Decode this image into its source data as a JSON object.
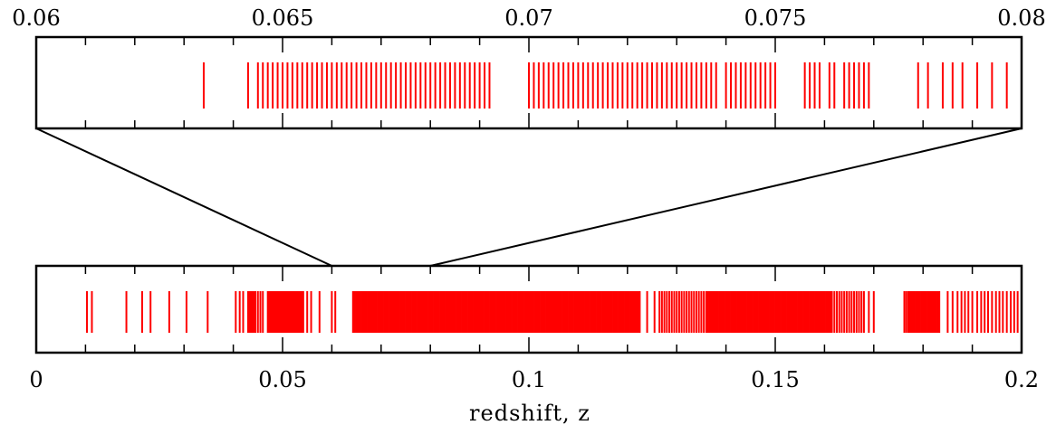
{
  "chart_data": [
    {
      "type": "rug",
      "name": "zoom-panel",
      "xlim": [
        0.06,
        0.08
      ],
      "tick_labels": [
        "0.06",
        "0.065",
        "0.07",
        "0.075",
        "0.08"
      ],
      "tick_values": [
        0.06,
        0.065,
        0.07,
        0.075,
        0.08
      ],
      "minor_step": 0.001,
      "xlabel": "",
      "color": "#ff0000",
      "z": [
        0.0667,
        0.0688,
        0.069,
        0.0692,
        0.0694,
        0.0695,
        0.0697,
        0.0698,
        0.07,
        0.0701,
        0.0702,
        0.0703,
        0.0705,
        0.0706,
        0.0707,
        0.0708,
        0.0709,
        0.0711,
        0.0712,
        0.0713,
        0.0714,
        0.0716,
        0.0718,
        0.0719,
        0.072,
        0.0722,
        0.0724,
        0.0725,
        0.0726,
        0.0727,
        0.0729,
        0.073,
        0.0731,
        0.0732,
        0.0734,
        0.0736,
        0.0738,
        0.0739,
        0.0741,
        0.0743,
        0.0744,
        0.0745,
        0.0747,
        0.0748,
        0.075,
        0.0752,
        0.0753,
        0.0755,
        0.0757,
        0.0758,
        0.076,
        0.0763,
        0.0765,
        0.0767,
        0.077,
        0.0775,
        0.0776,
        0.0778,
        0.078,
        0.0781,
        0.0783,
        0.0785,
        0.0787,
        0.0789,
        0.079,
        0.0791,
        0.0793,
        0.0795,
        0.0797,
        0.0799,
        0.0801,
        0.0803,
        0.0806,
        0.0808,
        0.081,
        0.0812,
        0.0815,
        0.0817,
        0.0819,
        0.0821,
        0.0823,
        0.0826,
        0.0829,
        0.0832,
        0.0836,
        0.084,
        0.0844,
        0.0848,
        0.0852,
        0.0856,
        0.086,
        0.0863,
        0.0867,
        0.0871,
        0.0875,
        0.0879,
        0.0883,
        0.0887,
        0.0891,
        0.0895,
        0.0899,
        0.0903,
        0.0907,
        0.0911,
        0.0915,
        0.0919,
        0.0923,
        0.0927,
        0.0931,
        0.0935,
        0.0939,
        0.0943,
        0.0947,
        0.0951,
        0.0955,
        0.0959,
        0.0963,
        0.0967,
        0.0971,
        0.0975,
        0.0979,
        0.0983,
        0.0987,
        0.0991,
        0.0995,
        0.0999,
        0.1003,
        0.1007,
        0.1011,
        0.1015,
        0.1019,
        0.1023,
        0.1027,
        0.1031,
        0.1035,
        0.1039,
        0.1043,
        0.1047,
        0.1051,
        0.1055,
        0.1059,
        0.1063,
        0.1067,
        0.1071,
        0.1075,
        0.1079,
        0.1083,
        0.1087,
        0.1091,
        0.1095,
        0.1099,
        0.1103,
        0.1107,
        0.1111,
        0.1115,
        0.1119,
        0.1123,
        0.1127,
        0.1131,
        0.1135,
        0.1139,
        0.1143,
        0.1147,
        0.1151,
        0.1155,
        0.1159,
        0.1163,
        0.1167,
        0.1171,
        0.1175,
        0.1179,
        0.1183,
        0.1187,
        0.1191,
        0.1195,
        0.1199,
        0.1203,
        0.1207,
        0.1211,
        0.1215,
        0.1219,
        0.1223,
        0.1227,
        0.1231,
        0.1235,
        0.1239,
        0.1243,
        0.1247,
        0.1251,
        0.1255,
        0.1259,
        0.1263,
        0.1267,
        0.1271,
        0.1275,
        0.1279,
        0.1283,
        0.1287,
        0.1291,
        0.1295,
        0.1299,
        0.1303,
        0.1307,
        0.1311,
        0.1315,
        0.1319,
        0.1323,
        0.1327,
        0.1331,
        0.1335,
        0.1339,
        0.1343,
        0.1347,
        0.1351,
        0.1355,
        0.1359,
        0.1363,
        0.1367,
        0.1371,
        0.1375,
        0.1379,
        0.1383,
        0.1387,
        0.1391,
        0.1395,
        0.1403,
        0.1406,
        0.1409,
        0.1412,
        0.1415,
        0.1418,
        0.1421,
        0.1424,
        0.1427,
        0.143,
        0.1433,
        0.1436,
        0.1439,
        0.1442,
        0.1445,
        0.1448,
        0.1451,
        0.1454,
        0.1457,
        0.146,
        0.1463,
        0.1466,
        0.1469,
        0.1472,
        0.1475,
        0.1478,
        0.1481,
        0.1484,
        0.1487,
        0.149,
        0.1493,
        0.1496,
        0.1499
      ],
      "z_zoom": [
        0.0634,
        0.0643,
        0.0645,
        0.0646,
        0.0647,
        0.0648,
        0.0649,
        0.065,
        0.0651,
        0.0652,
        0.0653,
        0.0654,
        0.0655,
        0.0656,
        0.0657,
        0.0658,
        0.0659,
        0.066,
        0.0661,
        0.0662,
        0.0663,
        0.0664,
        0.0665,
        0.0666,
        0.0667,
        0.0668,
        0.0669,
        0.067,
        0.0671,
        0.0672,
        0.0673,
        0.0674,
        0.0675,
        0.0676,
        0.0677,
        0.0678,
        0.0679,
        0.068,
        0.0681,
        0.0682,
        0.0683,
        0.0684,
        0.0685,
        0.0686,
        0.0687,
        0.0688,
        0.0689,
        0.069,
        0.0691,
        0.0692,
        0.07,
        0.0701,
        0.0702,
        0.0703,
        0.0704,
        0.0705,
        0.0706,
        0.0707,
        0.0708,
        0.0709,
        0.071,
        0.0711,
        0.0712,
        0.0713,
        0.0714,
        0.0715,
        0.0716,
        0.0717,
        0.0718,
        0.0719,
        0.072,
        0.0721,
        0.0722,
        0.0723,
        0.0724,
        0.0725,
        0.0726,
        0.0727,
        0.0728,
        0.0729,
        0.073,
        0.0731,
        0.0732,
        0.0733,
        0.0734,
        0.0735,
        0.0736,
        0.0737,
        0.0738,
        0.074,
        0.0741,
        0.0742,
        0.0743,
        0.0744,
        0.0745,
        0.0746,
        0.0747,
        0.0748,
        0.0749,
        0.075,
        0.0756,
        0.0757,
        0.0758,
        0.0759,
        0.0761,
        0.0762,
        0.0764,
        0.0765,
        0.0766,
        0.0767,
        0.0768,
        0.0769,
        0.0779,
        0.0781,
        0.0784,
        0.0786,
        0.0788,
        0.0791,
        0.0794,
        0.0797
      ]
    },
    {
      "type": "rug",
      "name": "full-panel",
      "xlim": [
        0.0,
        0.2
      ],
      "tick_labels": [
        "0",
        "0.05",
        "0.1",
        "0.15",
        "0.2"
      ],
      "tick_values": [
        0.0,
        0.05,
        0.1,
        0.15,
        0.2
      ],
      "minor_step": 0.01,
      "xlabel": "redshift, z",
      "color": "#ff0000",
      "zoom_range": [
        0.06,
        0.08
      ],
      "z": [
        0.0103,
        0.0113,
        0.0183,
        0.0215,
        0.0232,
        0.027,
        0.0305,
        0.0348,
        0.0405,
        0.0413,
        0.042,
        0.043,
        0.0433,
        0.0436,
        0.0439,
        0.0442,
        0.0445,
        0.045,
        0.0455,
        0.046,
        0.047,
        0.0472,
        0.0474,
        0.0476,
        0.0478,
        0.048,
        0.0482,
        0.0484,
        0.0486,
        0.0488,
        0.049,
        0.0492,
        0.0494,
        0.0496,
        0.0498,
        0.05,
        0.0502,
        0.0504,
        0.0506,
        0.0508,
        0.051,
        0.0512,
        0.0514,
        0.0516,
        0.0518,
        0.052,
        0.0522,
        0.0524,
        0.0526,
        0.0528,
        0.053,
        0.0532,
        0.0534,
        0.0536,
        0.0538,
        0.054,
        0.0542,
        0.055,
        0.0558,
        0.0575,
        0.06,
        0.0607,
        0.0643,
        0.0646,
        0.0649,
        0.0652,
        0.0655,
        0.0658,
        0.0661,
        0.0664,
        0.0667,
        0.067,
        0.0673,
        0.0676,
        0.0679,
        0.0682,
        0.0685,
        0.0688,
        0.0691,
        0.0694,
        0.0697,
        0.07,
        0.0703,
        0.0706,
        0.0709,
        0.0712,
        0.0715,
        0.0718,
        0.0721,
        0.0724,
        0.0727,
        0.073,
        0.0733,
        0.0736,
        0.0739,
        0.0742,
        0.0745,
        0.0748,
        0.0751,
        0.0754,
        0.0757,
        0.076,
        0.0763,
        0.0766,
        0.0769,
        0.0772,
        0.0775,
        0.0778,
        0.0781,
        0.0784,
        0.0787,
        0.079,
        0.0793,
        0.0796,
        0.0799,
        0.0802,
        0.0805,
        0.0808,
        0.0811,
        0.0814,
        0.0817,
        0.082,
        0.0823,
        0.0826,
        0.0829,
        0.0832,
        0.0835,
        0.0838,
        0.0841,
        0.0844,
        0.0847,
        0.085,
        0.0853,
        0.0856,
        0.0859,
        0.0862,
        0.0865,
        0.0868,
        0.0871,
        0.0874,
        0.0877,
        0.088,
        0.0883,
        0.0886,
        0.0889,
        0.0892,
        0.0895,
        0.0898,
        0.0901,
        0.0904,
        0.0907,
        0.091,
        0.0913,
        0.0916,
        0.0919,
        0.0922,
        0.0925,
        0.0928,
        0.0931,
        0.0934,
        0.0937,
        0.094,
        0.0943,
        0.0946,
        0.0949,
        0.0952,
        0.0955,
        0.0958,
        0.0961,
        0.0964,
        0.0967,
        0.097,
        0.0973,
        0.0976,
        0.0979,
        0.0982,
        0.0985,
        0.0988,
        0.0991,
        0.0994,
        0.0997,
        0.1,
        0.1003,
        0.1006,
        0.1009,
        0.1012,
        0.1015,
        0.1018,
        0.1021,
        0.1024,
        0.1027,
        0.103,
        0.1033,
        0.1036,
        0.1039,
        0.1042,
        0.1045,
        0.1048,
        0.1051,
        0.1054,
        0.1057,
        0.106,
        0.1063,
        0.1066,
        0.1069,
        0.1072,
        0.1075,
        0.1078,
        0.1081,
        0.1084,
        0.1087,
        0.109,
        0.1093,
        0.1096,
        0.1099,
        0.1102,
        0.1105,
        0.1108,
        0.1111,
        0.1114,
        0.1117,
        0.112,
        0.1123,
        0.1126,
        0.1129,
        0.1132,
        0.1135,
        0.1138,
        0.1141,
        0.1144,
        0.1147,
        0.115,
        0.1153,
        0.1156,
        0.1159,
        0.1162,
        0.1165,
        0.1168,
        0.1171,
        0.1174,
        0.1177,
        0.118,
        0.1183,
        0.1186,
        0.1189,
        0.1192,
        0.1195,
        0.1198,
        0.1201,
        0.1204,
        0.1207,
        0.121,
        0.1213,
        0.1216,
        0.1219,
        0.1222,
        0.1225,
        0.124,
        0.1255,
        0.1265,
        0.127,
        0.1275,
        0.128,
        0.1285,
        0.129,
        0.1295,
        0.13,
        0.1305,
        0.131,
        0.1315,
        0.132,
        0.1325,
        0.133,
        0.1335,
        0.134,
        0.1345,
        0.135,
        0.1355,
        0.136,
        0.1363,
        0.1366,
        0.1369,
        0.1372,
        0.1375,
        0.1378,
        0.1381,
        0.1384,
        0.1387,
        0.139,
        0.1393,
        0.1396,
        0.1399,
        0.1402,
        0.1405,
        0.1408,
        0.1411,
        0.1414,
        0.1417,
        0.142,
        0.1423,
        0.1426,
        0.1429,
        0.1432,
        0.1435,
        0.1438,
        0.1441,
        0.1444,
        0.1447,
        0.145,
        0.1453,
        0.1456,
        0.1459,
        0.1462,
        0.1465,
        0.1468,
        0.1471,
        0.1474,
        0.1477,
        0.148,
        0.1483,
        0.1486,
        0.1489,
        0.1492,
        0.1495,
        0.1498,
        0.1501,
        0.1504,
        0.1507,
        0.151,
        0.1513,
        0.1516,
        0.1519,
        0.1522,
        0.1525,
        0.1528,
        0.1531,
        0.1534,
        0.1537,
        0.154,
        0.1543,
        0.1546,
        0.1549,
        0.1552,
        0.1555,
        0.1558,
        0.1561,
        0.1564,
        0.1567,
        0.157,
        0.1573,
        0.1576,
        0.1579,
        0.1582,
        0.1585,
        0.1588,
        0.1591,
        0.1594,
        0.1597,
        0.16,
        0.1603,
        0.1606,
        0.1609,
        0.1612,
        0.1615,
        0.162,
        0.1625,
        0.163,
        0.1635,
        0.164,
        0.1645,
        0.165,
        0.1655,
        0.166,
        0.1665,
        0.167,
        0.1675,
        0.168,
        0.169,
        0.17,
        0.1762,
        0.1766,
        0.177,
        0.1773,
        0.1776,
        0.1779,
        0.1782,
        0.1785,
        0.1788,
        0.1791,
        0.1794,
        0.1797,
        0.18,
        0.1803,
        0.1806,
        0.1809,
        0.1812,
        0.1815,
        0.1818,
        0.1821,
        0.1824,
        0.1827,
        0.183,
        0.1833,
        0.185,
        0.186,
        0.187,
        0.1878,
        0.1885,
        0.1892,
        0.19,
        0.191,
        0.1918,
        0.1925,
        0.1932,
        0.194,
        0.1948,
        0.1955,
        0.1962,
        0.197,
        0.1978,
        0.1985,
        0.1992
      ]
    }
  ]
}
